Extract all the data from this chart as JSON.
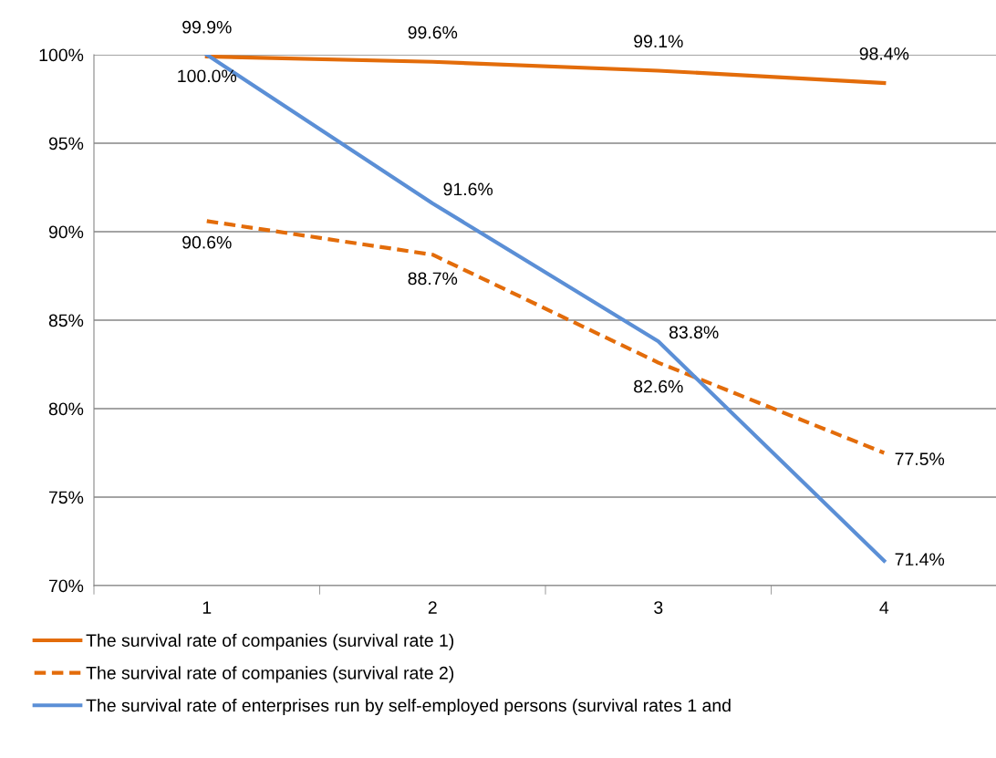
{
  "chart_data": {
    "type": "line",
    "categories": [
      "1",
      "2",
      "3",
      "4"
    ],
    "series": [
      {
        "name": "The survival rate of companies (survival rate 1)",
        "color": "#e36c0a",
        "line_style": "solid",
        "values": [
          99.9,
          99.6,
          99.1,
          98.4
        ],
        "value_labels": [
          "99.9%",
          "99.6%",
          "99.1%",
          "98.4%"
        ]
      },
      {
        "name": "The survival rate of companies (survival rate 2)",
        "color": "#e36c0a",
        "line_style": "dashed",
        "values": [
          90.6,
          88.7,
          82.6,
          77.5
        ],
        "value_labels": [
          "90.6%",
          "88.7%",
          "82.6%",
          "77.5%"
        ]
      },
      {
        "name": "The survival rate of enterprises run by self-employed persons (survival rates 1 and",
        "color": "#5b8fd6",
        "line_style": "solid",
        "values": [
          100.0,
          91.6,
          83.8,
          71.4
        ],
        "value_labels": [
          "100.0%",
          "91.6%",
          "83.8%",
          "71.4%"
        ]
      }
    ],
    "ylim": [
      70,
      100
    ],
    "yticks": [
      {
        "value": 70,
        "label": "70%"
      },
      {
        "value": 75,
        "label": "75%"
      },
      {
        "value": 80,
        "label": "80%"
      },
      {
        "value": 85,
        "label": "85%"
      },
      {
        "value": 90,
        "label": "90%"
      },
      {
        "value": 95,
        "label": "95%"
      },
      {
        "value": 100,
        "label": "100%"
      }
    ],
    "grid": "y",
    "legend": "bottom",
    "marker": "none"
  }
}
